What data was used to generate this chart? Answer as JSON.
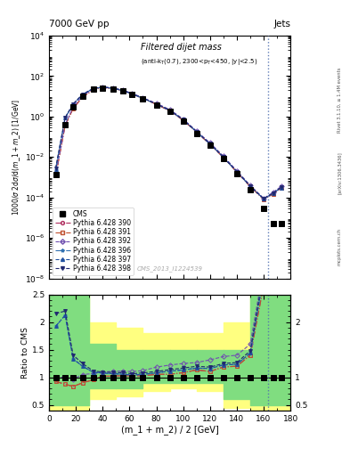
{
  "title_top": "7000 GeV pp",
  "title_right": "Jets",
  "watermark": "CMS_2013_I1224539",
  "rivet_label": "Rivet 3.1.10, ≥ 1.4M events",
  "arxiv_label": "[arXiv:1306.3436]",
  "mcplots_label": "mcplots.cern.ch",
  "xlabel": "(m_1 + m_2) / 2 [GeV]",
  "ylabel_top": "1000/σ 2dσ/d(m_1 + m_2) [1/GeV]",
  "ylabel_bottom": "Ratio to CMS",
  "x_edges": [
    0,
    10,
    20,
    30,
    40,
    50,
    60,
    70,
    80,
    90,
    100,
    110,
    120,
    130,
    140,
    150,
    160,
    170,
    180
  ],
  "x_data": [
    5,
    12,
    18,
    25,
    33,
    40,
    48,
    55,
    62,
    70,
    80,
    90,
    100,
    110,
    120,
    130,
    140,
    150,
    160,
    167,
    173
  ],
  "cms_y": [
    0.0013,
    0.4,
    3.0,
    10.0,
    22.0,
    26.0,
    23.0,
    18.0,
    12.5,
    7.5,
    3.8,
    1.8,
    0.6,
    0.15,
    0.038,
    0.008,
    0.0015,
    0.00025,
    3e-05,
    5e-06,
    5e-06
  ],
  "p390_y": [
    0.0012,
    0.35,
    2.5,
    9.0,
    21.0,
    26.5,
    23.5,
    18.5,
    12.8,
    7.7,
    4.0,
    1.9,
    0.65,
    0.17,
    0.042,
    0.0095,
    0.0018,
    0.00035,
    8e-05,
    0.00015,
    0.0003
  ],
  "p391_y": [
    0.0012,
    0.35,
    2.5,
    9.0,
    21.0,
    26.5,
    23.5,
    18.5,
    12.8,
    7.7,
    4.0,
    1.9,
    0.65,
    0.17,
    0.042,
    0.0095,
    0.0018,
    0.00035,
    8e-05,
    0.00015,
    0.0003
  ],
  "p392_y": [
    0.0013,
    0.4,
    2.9,
    10.5,
    23.5,
    28.5,
    25.5,
    20.0,
    13.8,
    8.4,
    4.5,
    2.2,
    0.75,
    0.19,
    0.05,
    0.011,
    0.0021,
    0.0004,
    9e-05,
    0.00018,
    0.00035
  ],
  "p396_y": [
    0.0025,
    0.85,
    4.0,
    12.0,
    24.0,
    28.0,
    24.5,
    19.0,
    13.0,
    7.9,
    4.1,
    2.0,
    0.68,
    0.175,
    0.044,
    0.0098,
    0.00185,
    0.00036,
    8.5e-05,
    0.00016,
    0.00031
  ],
  "p397_y": [
    0.0025,
    0.85,
    4.0,
    12.0,
    24.0,
    28.0,
    24.5,
    19.0,
    13.0,
    7.9,
    4.1,
    2.0,
    0.68,
    0.175,
    0.044,
    0.0098,
    0.00185,
    0.00036,
    8.5e-05,
    0.00016,
    0.00031
  ],
  "p398_y": [
    0.0028,
    0.88,
    4.2,
    12.5,
    24.5,
    28.5,
    25.0,
    19.5,
    13.3,
    8.1,
    4.2,
    2.05,
    0.7,
    0.18,
    0.045,
    0.01,
    0.0019,
    0.00037,
    8.8e-05,
    0.000165,
    0.00032
  ],
  "color_cms": "#000000",
  "color_390": "#b03060",
  "color_391": "#c05030",
  "color_392": "#7050b0",
  "color_396": "#3070b0",
  "color_397": "#2050a0",
  "color_398": "#202870",
  "bg_green": "#80dd80",
  "bg_yellow": "#ffff80",
  "green_band_lo": 0.5,
  "green_band_hi": 1.5,
  "yellow_band_lo": 0.4,
  "yellow_band_hi": 2.5,
  "band_x_edges": [
    0,
    10,
    30,
    50,
    70,
    90,
    110,
    130,
    150,
    170,
    180
  ],
  "green_lo_vals": [
    0.5,
    0.5,
    0.8,
    0.8,
    0.9,
    0.9,
    0.9,
    0.6,
    0.5,
    0.5
  ],
  "green_hi_vals": [
    2.5,
    2.5,
    1.6,
    1.5,
    1.5,
    1.5,
    1.5,
    1.5,
    2.5,
    2.5
  ],
  "yellow_lo_vals": [
    0.4,
    0.4,
    0.6,
    0.65,
    0.75,
    0.8,
    0.75,
    0.45,
    0.4,
    0.4
  ],
  "yellow_hi_vals": [
    2.5,
    2.5,
    2.0,
    1.9,
    1.8,
    1.8,
    1.8,
    2.0,
    2.5,
    2.5
  ],
  "vline_x": 163,
  "xlim": [
    0,
    180
  ],
  "ylim_top_min": 1e-08,
  "ylim_top_max": 10000.0,
  "ylim_bottom_min": 0.4,
  "ylim_bottom_max": 2.5
}
